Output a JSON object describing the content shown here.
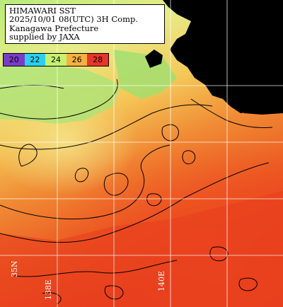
{
  "title": {
    "line1": "HIMAWARI SST",
    "line2": "2025/10/01 08(UTC) 3H Comp.",
    "line3": "Kanagawa Prefecture",
    "line4": "supplied by JAXA"
  },
  "colorbar": {
    "ticks": [
      "20",
      "22",
      "24",
      "26",
      "28"
    ],
    "colors": [
      "#7a3cc8",
      "#2ad0ee",
      "#c8f070",
      "#f6b040",
      "#e8342a"
    ]
  },
  "grid_labels": {
    "lat_left": "35N",
    "lon_left": "138E",
    "lon_right": "140E"
  },
  "palette": {
    "land": "#000000",
    "grid": "#ffffff",
    "contour": "#000000"
  }
}
